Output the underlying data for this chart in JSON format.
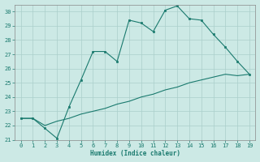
{
  "x": [
    0,
    1,
    2,
    3,
    4,
    5,
    6,
    7,
    8,
    9,
    10,
    11,
    12,
    13,
    14,
    15,
    16,
    17,
    18,
    19
  ],
  "y_line1": [
    22.5,
    22.5,
    21.8,
    21.1,
    23.3,
    25.2,
    27.2,
    27.2,
    26.5,
    29.4,
    29.2,
    28.6,
    30.1,
    30.4,
    29.5,
    29.4,
    28.4,
    27.5,
    26.5,
    25.6
  ],
  "y_line2": [
    22.5,
    22.5,
    22.0,
    22.3,
    22.5,
    22.8,
    23.0,
    23.2,
    23.5,
    23.7,
    24.0,
    24.2,
    24.5,
    24.7,
    25.0,
    25.2,
    25.4,
    25.6,
    25.5,
    25.6
  ],
  "line_color": "#1a7a6e",
  "bg_color": "#cce9e5",
  "grid_color": "#aacfcb",
  "xlabel": "Humidex (Indice chaleur)",
  "xlim": [
    -0.5,
    19.5
  ],
  "ylim": [
    21.0,
    30.5
  ],
  "yticks": [
    21,
    22,
    23,
    24,
    25,
    26,
    27,
    28,
    29,
    30
  ],
  "xticks": [
    0,
    1,
    2,
    3,
    4,
    5,
    6,
    7,
    8,
    9,
    10,
    11,
    12,
    13,
    14,
    15,
    16,
    17,
    18,
    19
  ]
}
